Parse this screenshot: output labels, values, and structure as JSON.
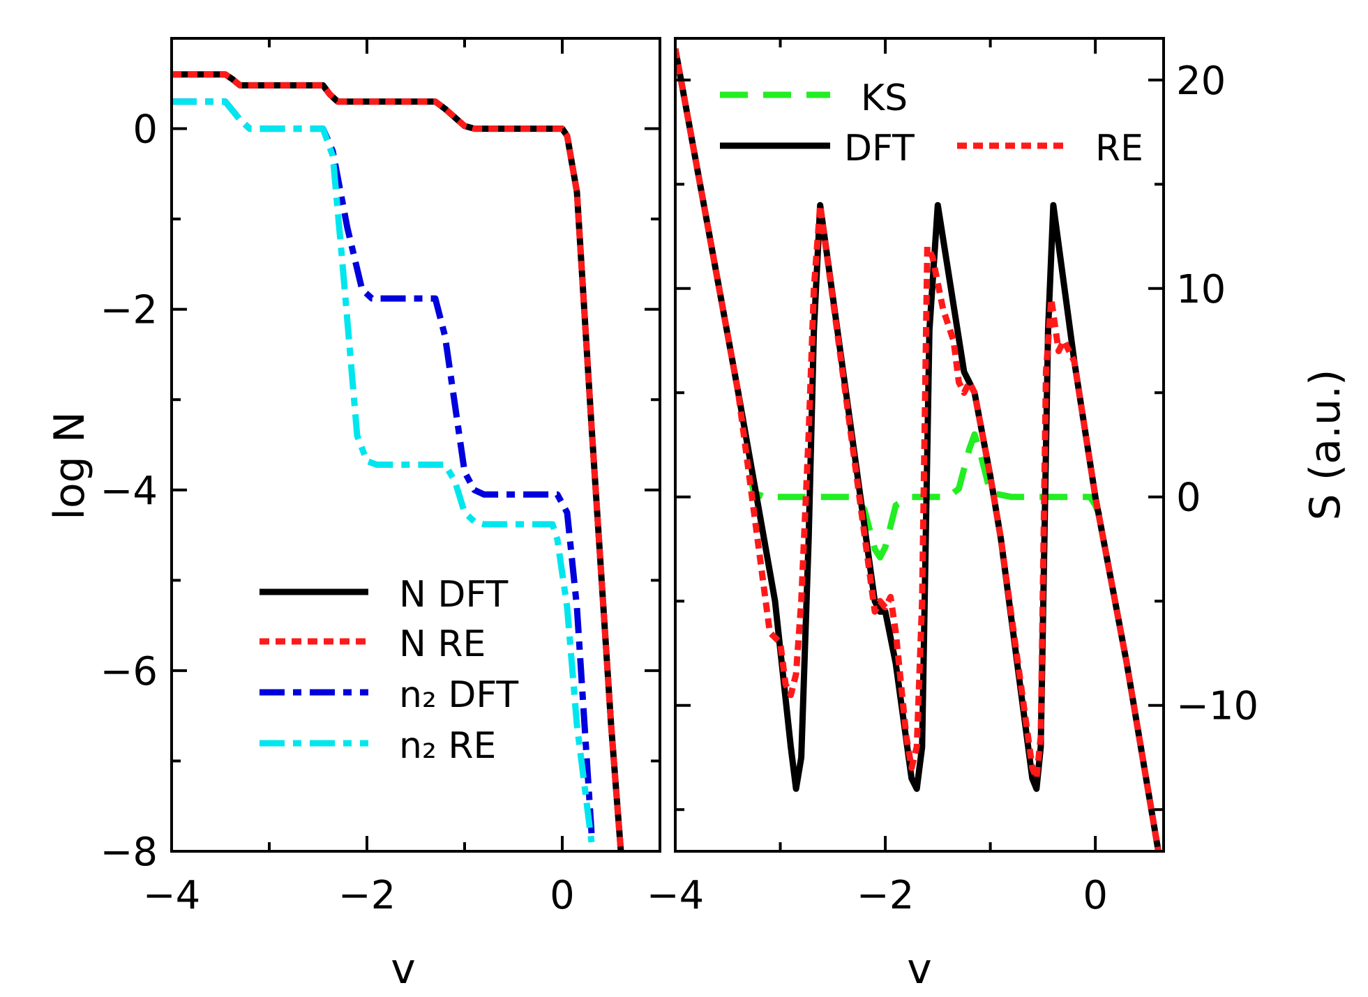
{
  "chart_data": [
    {
      "type": "line",
      "xlabel": "v",
      "ylabel": "log N",
      "xlim": [
        -4,
        1.0
      ],
      "ylim": [
        -8,
        1.0
      ],
      "x_ticks": [
        -4,
        -2,
        0
      ],
      "x_tick_labels": [
        "−4",
        "−2",
        "0"
      ],
      "y_ticks": [
        0,
        -2,
        -4,
        -6,
        -8
      ],
      "y_tick_labels": [
        "0",
        "−2",
        "−4",
        "−6",
        "−8"
      ],
      "legend_position": "bottom-right",
      "series": [
        {
          "name": "N DFT",
          "color": "#000000",
          "style": "solid",
          "x": [
            -4.0,
            -3.45,
            -3.38,
            -3.3,
            -2.45,
            -2.38,
            -2.3,
            -1.3,
            -1.2,
            -1.0,
            -0.9,
            0.0,
            0.05,
            0.15,
            0.3,
            0.5,
            0.6
          ],
          "y": [
            0.6,
            0.6,
            0.55,
            0.48,
            0.48,
            0.38,
            0.3,
            0.3,
            0.22,
            0.03,
            0.0,
            0.0,
            -0.08,
            -0.7,
            -3.3,
            -6.6,
            -8.0
          ]
        },
        {
          "name": "N RE",
          "color": "#ff1a1a",
          "style": "dotted",
          "x": [
            -4.0,
            -3.45,
            -3.38,
            -3.3,
            -2.45,
            -2.38,
            -2.3,
            -1.3,
            -1.2,
            -1.0,
            -0.9,
            0.0,
            0.05,
            0.15,
            0.3,
            0.5,
            0.6
          ],
          "y": [
            0.6,
            0.6,
            0.55,
            0.48,
            0.48,
            0.38,
            0.3,
            0.3,
            0.22,
            0.03,
            0.0,
            0.0,
            -0.08,
            -0.7,
            -3.3,
            -6.6,
            -8.0
          ]
        },
        {
          "name": "n₂ DFT",
          "color": "#0000dd",
          "style": "dashdot",
          "x": [
            -4.0,
            -3.45,
            -3.3,
            -3.2,
            -2.45,
            -2.35,
            -2.2,
            -2.05,
            -1.95,
            -1.3,
            -1.2,
            -1.0,
            -0.9,
            -0.8,
            -0.05,
            0.05,
            0.15,
            0.3
          ],
          "y": [
            0.3,
            0.3,
            0.1,
            0.0,
            0.0,
            -0.25,
            -1.1,
            -1.78,
            -1.88,
            -1.88,
            -2.3,
            -3.8,
            -4.0,
            -4.05,
            -4.05,
            -4.25,
            -5.3,
            -7.8
          ]
        },
        {
          "name": "n₂ RE",
          "color": "#00e6ee",
          "style": "dashdot",
          "x": [
            -4.0,
            -3.45,
            -3.3,
            -3.2,
            -2.45,
            -2.35,
            -2.25,
            -2.1,
            -2.0,
            -1.9,
            -1.2,
            -1.1,
            -1.0,
            -0.9,
            -0.8,
            -0.1,
            -0.05,
            0.05,
            0.15,
            0.3
          ],
          "y": [
            0.3,
            0.3,
            0.1,
            0.0,
            0.0,
            -0.3,
            -1.5,
            -3.4,
            -3.68,
            -3.72,
            -3.72,
            -3.9,
            -4.25,
            -4.35,
            -4.38,
            -4.38,
            -4.55,
            -5.3,
            -6.6,
            -7.9
          ]
        }
      ]
    },
    {
      "type": "line",
      "xlabel": "v",
      "ylabel": "S (a.u.)",
      "xlim": [
        -4,
        0.65
      ],
      "ylim": [
        -17,
        22
      ],
      "x_ticks": [
        -4,
        -2,
        0
      ],
      "x_tick_labels": [
        "−4",
        "−2",
        "0"
      ],
      "y_ticks": [
        -10,
        0,
        10,
        20
      ],
      "y_tick_labels": [
        "−10",
        "0",
        "10",
        "20"
      ],
      "y_minor_ticks": [
        -15,
        -5,
        5,
        15
      ],
      "legend_position": "top",
      "series": [
        {
          "name": "KS",
          "color": "#22ee22",
          "style": "dashed",
          "x": [
            -4.0,
            -3.3,
            -3.25,
            -3.15,
            -2.3,
            -2.2,
            -2.1,
            -2.05,
            -2.0,
            -1.9,
            -1.75,
            -1.4,
            -1.3,
            -1.2,
            -1.15,
            -1.1,
            -1.0,
            -0.8,
            -0.05,
            0.0,
            0.05
          ],
          "y": [
            21.5,
            1.2,
            0.2,
            0.0,
            0.0,
            -0.6,
            -2.5,
            -2.9,
            -2.4,
            -0.4,
            0.0,
            0.0,
            0.4,
            2.3,
            3.0,
            2.2,
            0.2,
            0.0,
            0.0,
            -0.4,
            -1.0
          ],
          "mask_before": -3.32
        },
        {
          "name": "DFT",
          "color": "#000000",
          "style": "solid",
          "x": [
            -4.0,
            -3.4,
            -3.05,
            -2.9,
            -2.85,
            -2.8,
            -2.73,
            -2.68,
            -2.62,
            -2.1,
            -2.05,
            -2.0,
            -1.9,
            -1.75,
            -1.7,
            -1.65,
            -1.58,
            -1.5,
            -1.25,
            -1.2,
            -1.15,
            -1.0,
            -0.9,
            -0.6,
            -0.56,
            -0.52,
            -0.45,
            -0.4,
            -0.2,
            0.0,
            0.3,
            0.5,
            0.6
          ],
          "y": [
            21.5,
            5.0,
            -5.0,
            -12.0,
            -14.0,
            -12.5,
            -2.0,
            8.0,
            14.0,
            -5.0,
            -5.5,
            -5.5,
            -8.0,
            -13.5,
            -14.0,
            -12.0,
            8.0,
            14.0,
            6.0,
            5.5,
            5.0,
            1.0,
            -2.0,
            -13.5,
            -14.0,
            -12.0,
            8.0,
            14.0,
            6.5,
            0.0,
            -8.0,
            -14.0,
            -17.0
          ]
        },
        {
          "name": "RE",
          "color": "#ff1a1a",
          "style": "dotted",
          "x": [
            -4.0,
            -3.4,
            -3.1,
            -3.0,
            -2.95,
            -2.9,
            -2.85,
            -2.8,
            -2.73,
            -2.68,
            -2.62,
            -2.1,
            -2.05,
            -2.0,
            -1.95,
            -1.9,
            -1.8,
            -1.75,
            -1.7,
            -1.65,
            -1.6,
            -1.55,
            -1.45,
            -1.35,
            -1.3,
            -1.25,
            -1.2,
            -1.15,
            -1.0,
            -0.9,
            -0.6,
            -0.56,
            -0.52,
            -0.47,
            -0.42,
            -0.35,
            -0.3,
            -0.25,
            -0.2,
            0.0,
            0.3,
            0.5,
            0.6
          ],
          "y": [
            21.5,
            5.0,
            -6.5,
            -7.0,
            -9.0,
            -9.5,
            -8.5,
            -5.0,
            3.0,
            10.0,
            14.0,
            -5.5,
            -5.0,
            -5.3,
            -4.8,
            -6.5,
            -11.5,
            -13.0,
            -12.0,
            -5.0,
            12.0,
            11.5,
            9.0,
            7.5,
            5.5,
            5.0,
            5.5,
            5.0,
            1.0,
            -2.0,
            -13.0,
            -13.5,
            -11.5,
            6.0,
            9.5,
            7.0,
            7.5,
            7.0,
            6.5,
            0.0,
            -8.0,
            -14.0,
            -17.0
          ]
        }
      ]
    }
  ]
}
